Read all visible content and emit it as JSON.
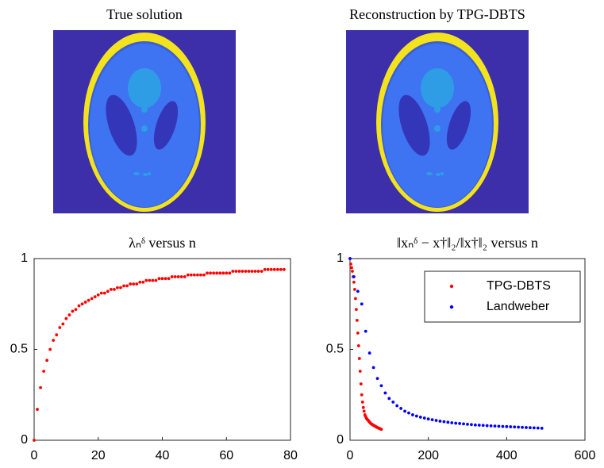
{
  "images": [
    {
      "title": "True solution"
    },
    {
      "title": "Reconstruction by TPG-DBTS"
    }
  ],
  "chart_data": [
    {
      "type": "scatter",
      "title": "λₙᵟ versus n",
      "xlim": [
        0,
        80
      ],
      "xticks": [
        0,
        20,
        40,
        60,
        80
      ],
      "ylim": [
        0,
        1
      ],
      "yticks": [
        0,
        0.5,
        1
      ],
      "series": [
        {
          "color": "#ff0000",
          "x": [
            0,
            1,
            2,
            3,
            4,
            5,
            6,
            7,
            8,
            9,
            10,
            11,
            12,
            13,
            14,
            15,
            16,
            17,
            18,
            19,
            20,
            21,
            22,
            23,
            24,
            25,
            26,
            27,
            28,
            29,
            30,
            31,
            32,
            33,
            34,
            35,
            36,
            37,
            38,
            39,
            40,
            41,
            42,
            43,
            44,
            45,
            46,
            47,
            48,
            49,
            50,
            51,
            52,
            53,
            54,
            55,
            56,
            57,
            58,
            59,
            60,
            61,
            62,
            63,
            64,
            65,
            66,
            67,
            68,
            69,
            70,
            71,
            72,
            73,
            74,
            75,
            76,
            77,
            78
          ],
          "values": [
            0,
            0.17,
            0.29,
            0.38,
            0.44,
            0.5,
            0.55,
            0.58,
            0.62,
            0.64,
            0.67,
            0.69,
            0.71,
            0.72,
            0.74,
            0.75,
            0.76,
            0.77,
            0.78,
            0.79,
            0.8,
            0.81,
            0.81,
            0.82,
            0.83,
            0.83,
            0.84,
            0.84,
            0.85,
            0.85,
            0.86,
            0.86,
            0.86,
            0.87,
            0.87,
            0.88,
            0.88,
            0.88,
            0.88,
            0.89,
            0.89,
            0.89,
            0.89,
            0.9,
            0.9,
            0.9,
            0.9,
            0.9,
            0.91,
            0.91,
            0.91,
            0.91,
            0.91,
            0.91,
            0.92,
            0.92,
            0.92,
            0.92,
            0.92,
            0.92,
            0.92,
            0.92,
            0.93,
            0.93,
            0.93,
            0.93,
            0.93,
            0.93,
            0.93,
            0.93,
            0.93,
            0.93,
            0.94,
            0.94,
            0.94,
            0.94,
            0.94,
            0.94,
            0.94
          ]
        }
      ]
    },
    {
      "type": "scatter",
      "title": "‖xₙᵟ − x†‖₂/‖x†‖₂ versus n",
      "xlim": [
        0,
        600
      ],
      "xticks": [
        0,
        200,
        400,
        600
      ],
      "ylim": [
        0,
        1
      ],
      "yticks": [
        0,
        0.5,
        1
      ],
      "legend": "upper right",
      "series": [
        {
          "name": "TPG-DBTS",
          "color": "#ff0000",
          "x": [
            0,
            2,
            4,
            6,
            8,
            10,
            12,
            14,
            16,
            18,
            20,
            22,
            24,
            26,
            28,
            30,
            32,
            34,
            36,
            38,
            40,
            42,
            44,
            46,
            48,
            50,
            52,
            54,
            56,
            58,
            60,
            62,
            64,
            66,
            68,
            70,
            72,
            74,
            76,
            78,
            80
          ],
          "values": [
            1.0,
            0.97,
            0.95,
            0.93,
            0.9,
            0.87,
            0.83,
            0.78,
            0.72,
            0.66,
            0.59,
            0.52,
            0.45,
            0.38,
            0.31,
            0.25,
            0.21,
            0.18,
            0.16,
            0.14,
            0.13,
            0.12,
            0.115,
            0.11,
            0.105,
            0.1,
            0.095,
            0.09,
            0.088,
            0.085,
            0.082,
            0.08,
            0.077,
            0.075,
            0.072,
            0.07,
            0.068,
            0.066,
            0.064,
            0.062,
            0.06
          ]
        },
        {
          "name": "Landweber",
          "color": "#0000ff",
          "x": [
            0,
            10,
            20,
            30,
            40,
            50,
            60,
            70,
            80,
            90,
            100,
            110,
            120,
            130,
            140,
            150,
            160,
            170,
            180,
            190,
            200,
            210,
            220,
            230,
            240,
            250,
            260,
            270,
            280,
            290,
            300,
            310,
            320,
            330,
            340,
            350,
            360,
            370,
            380,
            390,
            400,
            410,
            420,
            430,
            440,
            450,
            460,
            470,
            480,
            490
          ],
          "values": [
            1.0,
            0.9,
            0.82,
            0.75,
            0.6,
            0.48,
            0.4,
            0.34,
            0.3,
            0.26,
            0.23,
            0.21,
            0.19,
            0.175,
            0.16,
            0.15,
            0.14,
            0.133,
            0.127,
            0.122,
            0.117,
            0.113,
            0.109,
            0.105,
            0.102,
            0.099,
            0.096,
            0.094,
            0.092,
            0.09,
            0.088,
            0.086,
            0.084,
            0.083,
            0.082,
            0.08,
            0.079,
            0.078,
            0.077,
            0.076,
            0.075,
            0.074,
            0.073,
            0.072,
            0.071,
            0.07,
            0.069,
            0.068,
            0.067,
            0.066
          ]
        }
      ]
    }
  ]
}
